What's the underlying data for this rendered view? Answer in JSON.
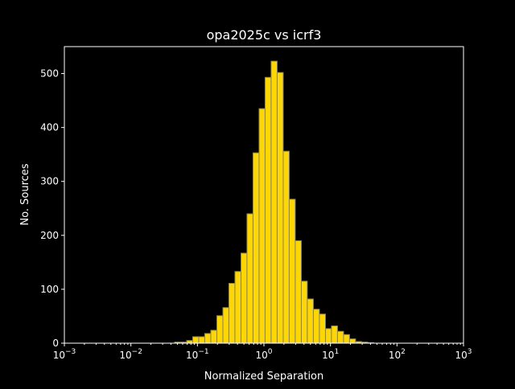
{
  "chart_data": {
    "type": "bar",
    "histogram": true,
    "title": "opa2025c vs icrf3",
    "xlabel": "Normalized Separation",
    "ylabel": "No. Sources",
    "xscale": "log",
    "xlim": [
      0.001,
      1000
    ],
    "ylim": [
      0,
      550
    ],
    "grid": false,
    "x_ticks": [
      0.001,
      0.01,
      0.1,
      1,
      10,
      100,
      1000
    ],
    "x_tick_labels": [
      {
        "base": "10",
        "exp": "−3"
      },
      {
        "base": "10",
        "exp": "−2"
      },
      {
        "base": "10",
        "exp": "−1"
      },
      {
        "base": "10",
        "exp": "0"
      },
      {
        "base": "10",
        "exp": "1"
      },
      {
        "base": "10",
        "exp": "2"
      },
      {
        "base": "10",
        "exp": "3"
      }
    ],
    "y_ticks": [
      0,
      100,
      200,
      300,
      400,
      500
    ],
    "y_tick_labels": [
      "0",
      "100",
      "200",
      "300",
      "400",
      "500"
    ],
    "bin_edges": [
      0.0454,
      0.056,
      0.0689,
      0.0849,
      0.1047,
      0.1288,
      0.1589,
      0.1959,
      0.2415,
      0.2972,
      0.3664,
      0.4519,
      0.5559,
      0.6855,
      0.8453,
      1.04,
      1.282,
      1.581,
      1.95,
      2.399,
      2.958,
      3.648,
      4.487,
      5.534,
      6.823,
      8.414,
      10.35,
      12.76,
      15.74,
      19.36,
      23.88,
      29.44,
      36.31,
      44.67
    ],
    "values": [
      2,
      2,
      5,
      12,
      12,
      18,
      24,
      51,
      66,
      111,
      133,
      167,
      240,
      353,
      435,
      493,
      523,
      502,
      356,
      267,
      190,
      115,
      82,
      63,
      54,
      27,
      32,
      22,
      16,
      8,
      3,
      2,
      1
    ],
    "bar_color": "#ffd700",
    "edge_color": "#808080",
    "background": "#000000",
    "foreground": "#ffffff"
  }
}
